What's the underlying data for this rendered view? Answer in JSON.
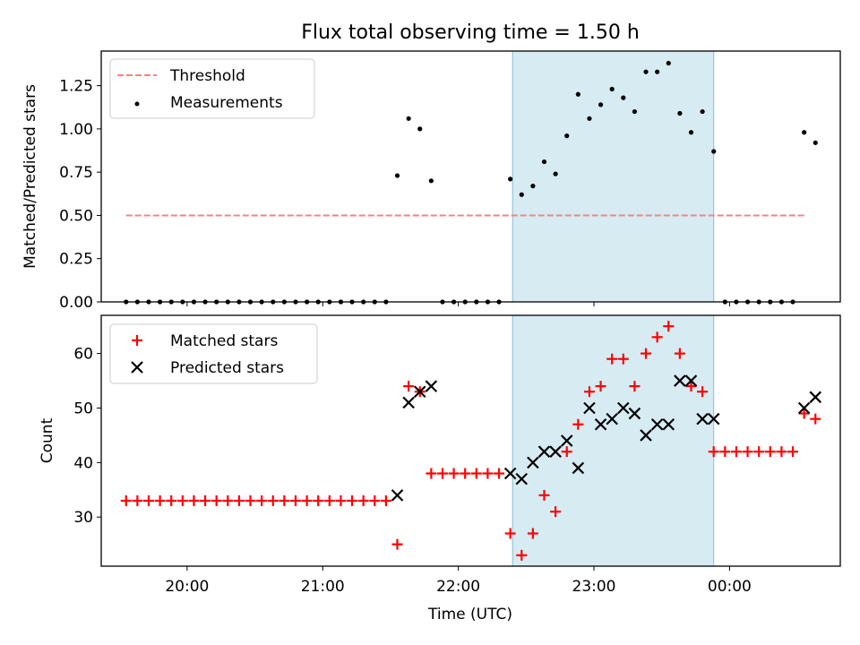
{
  "figure": {
    "title": "Flux total observing time = 1.50 h",
    "xlabel": "Time (UTC)"
  },
  "colors": {
    "threshold": "#ff8080",
    "measurement": "#000000",
    "matched": "#ff0000",
    "predicted": "#000000",
    "highlight": "#add8e6"
  },
  "chart_data": [
    {
      "type": "scatter",
      "ylabel": "Matched/Predicted stars",
      "xlim": [
        "19:22",
        "00:49"
      ],
      "ylim": [
        0,
        1.45
      ],
      "yticks": [
        "0.00",
        "0.25",
        "0.50",
        "0.75",
        "1.00",
        "1.25"
      ],
      "xticks": [
        "20:00",
        "21:00",
        "22:00",
        "23:00",
        "00:00"
      ],
      "show_xticklabels": false,
      "grid": false,
      "legend_position": "upper left",
      "shaded_region": {
        "x": [
          "22:24",
          "23:53"
        ],
        "color": "lightblue"
      },
      "series": [
        {
          "name": "Threshold",
          "style": "dashed-line",
          "x": [
            "19:33",
            "00:34"
          ],
          "y": [
            0.5,
            0.5
          ]
        },
        {
          "name": "Measurements",
          "style": "dots",
          "x": [
            "19:33",
            "19:38",
            "19:43",
            "19:48",
            "19:53",
            "19:58",
            "20:03",
            "20:08",
            "20:13",
            "20:18",
            "20:23",
            "20:28",
            "20:33",
            "20:38",
            "20:43",
            "20:48",
            "20:53",
            "20:58",
            "21:03",
            "21:08",
            "21:13",
            "21:18",
            "21:23",
            "21:28",
            "21:33",
            "21:38",
            "21:43",
            "21:48",
            "21:53",
            "21:58",
            "22:03",
            "22:08",
            "22:13",
            "22:18",
            "22:23",
            "22:28",
            "22:33",
            "22:38",
            "22:43",
            "22:48",
            "22:53",
            "22:58",
            "23:03",
            "23:08",
            "23:13",
            "23:18",
            "23:23",
            "23:28",
            "23:33",
            "23:38",
            "23:43",
            "23:48",
            "23:53",
            "23:58",
            "00:03",
            "00:08",
            "00:13",
            "00:18",
            "00:23",
            "00:28",
            "00:33",
            "00:38"
          ],
          "y": [
            0,
            0,
            0,
            0,
            0,
            0,
            0,
            0,
            0,
            0,
            0,
            0,
            0,
            0,
            0,
            0,
            0,
            0,
            0,
            0,
            0,
            0,
            0,
            0,
            0.73,
            1.06,
            1.0,
            0.7,
            0,
            0,
            0,
            0,
            0,
            0,
            0.71,
            0.62,
            0.67,
            0.81,
            0.74,
            0.96,
            1.2,
            1.06,
            1.14,
            1.23,
            1.18,
            1.1,
            1.33,
            1.33,
            1.38,
            1.09,
            0.98,
            1.1,
            0.87,
            0,
            0,
            0,
            0,
            0,
            0,
            0,
            0.98,
            0.92
          ]
        }
      ]
    },
    {
      "type": "scatter",
      "ylabel": "Count",
      "xlim": [
        "19:22",
        "00:49"
      ],
      "ylim": [
        21,
        67
      ],
      "yticks": [
        "30",
        "40",
        "50",
        "60"
      ],
      "xticks": [
        "20:00",
        "21:00",
        "22:00",
        "23:00",
        "00:00"
      ],
      "grid": false,
      "legend_position": "upper left",
      "shaded_region": {
        "x": [
          "22:24",
          "23:53"
        ],
        "color": "lightblue"
      },
      "series": [
        {
          "name": "Matched stars",
          "style": "plus",
          "x": [
            "19:33",
            "19:38",
            "19:43",
            "19:48",
            "19:53",
            "19:58",
            "20:03",
            "20:08",
            "20:13",
            "20:18",
            "20:23",
            "20:28",
            "20:33",
            "20:38",
            "20:43",
            "20:48",
            "20:53",
            "20:58",
            "21:03",
            "21:08",
            "21:13",
            "21:18",
            "21:23",
            "21:28",
            "21:33",
            "21:38",
            "21:43",
            "21:48",
            "21:53",
            "21:58",
            "22:03",
            "22:08",
            "22:13",
            "22:18",
            "22:23",
            "22:28",
            "22:33",
            "22:38",
            "22:43",
            "22:48",
            "22:53",
            "22:58",
            "23:03",
            "23:08",
            "23:13",
            "23:18",
            "23:23",
            "23:28",
            "23:33",
            "23:38",
            "23:43",
            "23:48",
            "23:53",
            "23:58",
            "00:03",
            "00:08",
            "00:13",
            "00:18",
            "00:23",
            "00:28",
            "00:33",
            "00:38"
          ],
          "y": [
            33,
            33,
            33,
            33,
            33,
            33,
            33,
            33,
            33,
            33,
            33,
            33,
            33,
            33,
            33,
            33,
            33,
            33,
            33,
            33,
            33,
            33,
            33,
            33,
            25,
            54,
            53,
            38,
            38,
            38,
            38,
            38,
            38,
            38,
            27,
            23,
            27,
            34,
            31,
            42,
            47,
            53,
            54,
            59,
            59,
            54,
            60,
            63,
            65,
            60,
            54,
            53,
            42,
            42,
            42,
            42,
            42,
            42,
            42,
            42,
            49,
            48
          ]
        },
        {
          "name": "Predicted stars",
          "style": "x",
          "x": [
            "21:33",
            "21:38",
            "21:43",
            "21:48",
            "22:23",
            "22:28",
            "22:33",
            "22:38",
            "22:43",
            "22:48",
            "22:53",
            "22:58",
            "23:03",
            "23:08",
            "23:13",
            "23:18",
            "23:23",
            "23:28",
            "23:33",
            "23:38",
            "23:43",
            "23:48",
            "23:53",
            "00:33",
            "00:38"
          ],
          "y": [
            34,
            51,
            53,
            54,
            38,
            37,
            40,
            42,
            42,
            44,
            39,
            50,
            47,
            48,
            50,
            49,
            45,
            47,
            47,
            55,
            55,
            48,
            48,
            50,
            52
          ]
        }
      ]
    }
  ]
}
